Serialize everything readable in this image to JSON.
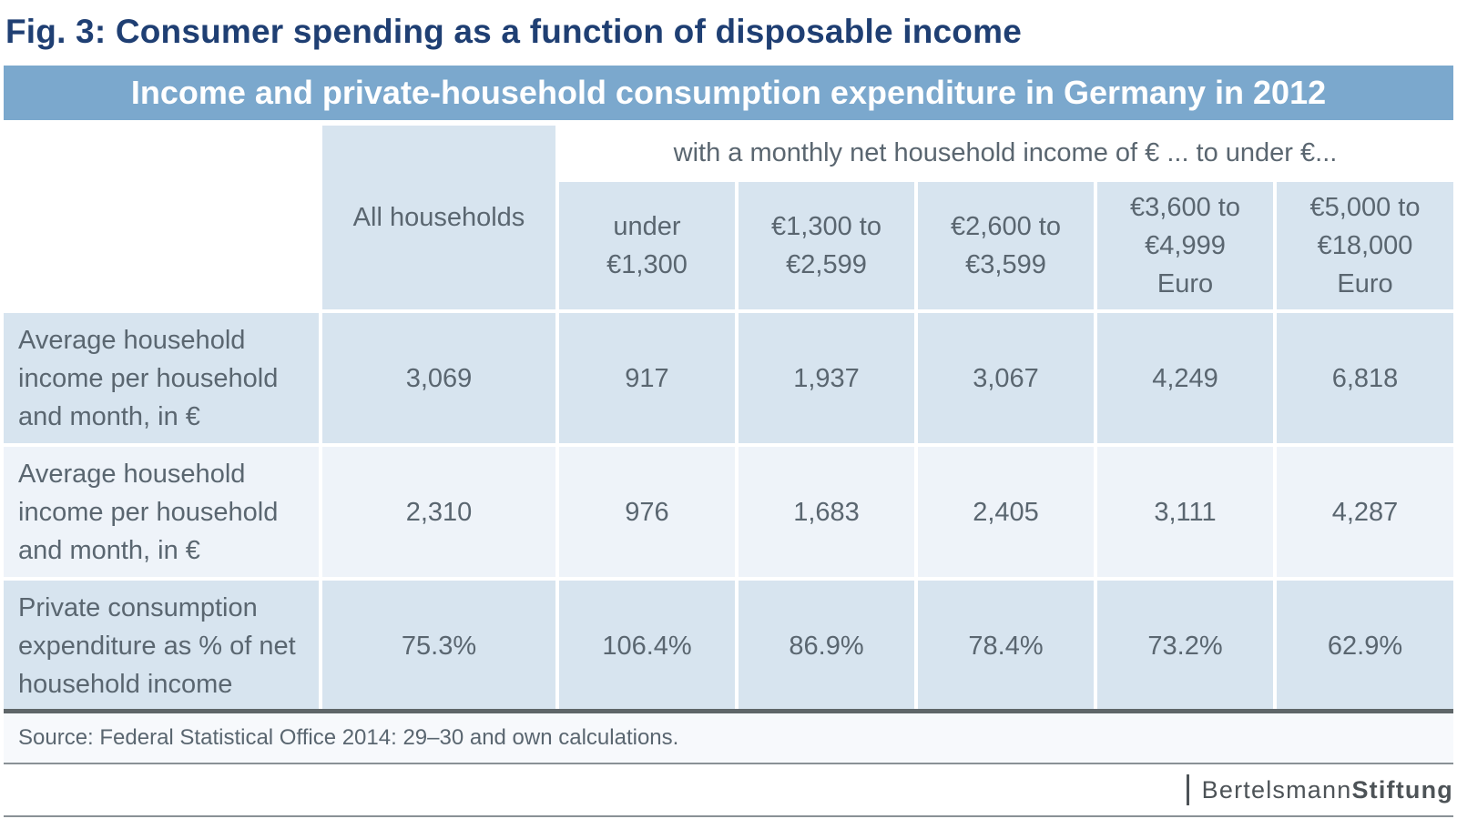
{
  "figure": {
    "title": "Fig. 3: Consumer spending as a function of disposable income",
    "banner": "Income and private-household consumption expenditure in Germany in 2012",
    "group_label": "with a monthly net household income of € ... to under €...",
    "source": "Source: Federal Statistical Office 2014: 29–30 and own calculations.",
    "logo": {
      "part1": "Bertelsmann",
      "part2": "Stiftung"
    }
  },
  "colors": {
    "title": "#1f3f73",
    "banner": "#7ba8cd",
    "cell_dark": "#d7e4ef",
    "cell_light": "#eef3f9",
    "text": "#5a6670"
  },
  "chart_data": {
    "type": "table",
    "title": "Income and private-household consumption expenditure in Germany in 2012",
    "column_group_label": "with a monthly net household income of € ... to under €...",
    "columns": [
      [
        "All households"
      ],
      [
        "under",
        "€1,300"
      ],
      [
        "€1,300 to",
        "€2,599"
      ],
      [
        "€2,600 to",
        "€3,599"
      ],
      [
        "€3,600 to",
        "€4,999",
        "Euro"
      ],
      [
        "€5,000 to",
        "€18,000",
        "Euro"
      ]
    ],
    "rows": [
      {
        "label": [
          "Average household",
          "income per household",
          "and month, in €"
        ],
        "values": [
          "3,069",
          "917",
          "1,937",
          "3,067",
          "4,249",
          "6,818"
        ]
      },
      {
        "label": [
          "Average household",
          "income per household",
          "and month, in €"
        ],
        "values": [
          "2,310",
          "976",
          "1,683",
          "2,405",
          "3,111",
          "4,287"
        ]
      },
      {
        "label": [
          "Private consumption",
          "expenditure as % of net",
          "household income"
        ],
        "values": [
          "75.3%",
          "106.4%",
          "86.9%",
          "78.4%",
          "73.2%",
          "62.9%"
        ]
      }
    ]
  }
}
